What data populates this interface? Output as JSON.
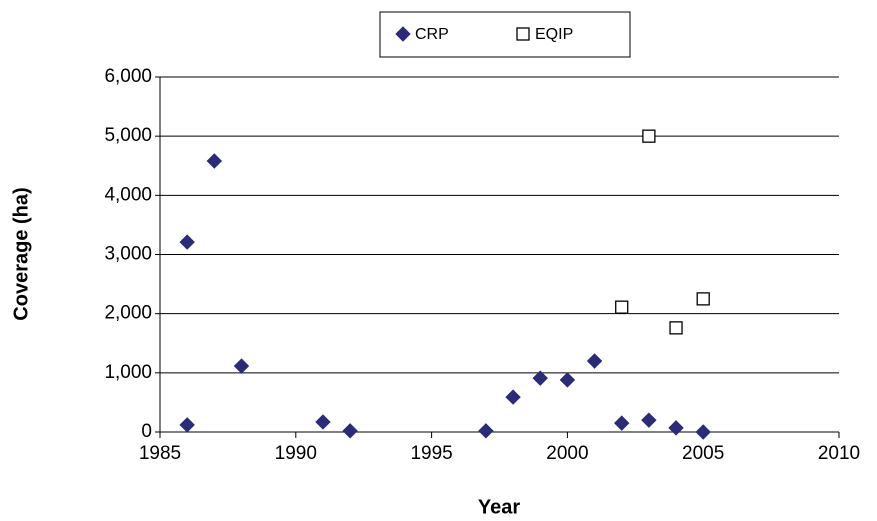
{
  "chart_data": {
    "type": "scatter",
    "x_label": "Year",
    "y_label": "Coverage (ha)",
    "series": [
      {
        "name": "CRP",
        "color": "#2b2b78",
        "marker": "diamond",
        "x": [
          1986,
          1986,
          1987,
          1988,
          1991,
          1992,
          1997,
          1998,
          1999,
          2000,
          2001,
          2002,
          2003,
          2004,
          2005
        ],
        "values": [
          3210,
          120,
          4580,
          1115,
          170,
          20,
          20,
          590,
          910,
          880,
          1200,
          150,
          200,
          70,
          0
        ]
      },
      {
        "name": "EQIP",
        "color": "#ffffff",
        "marker": "square",
        "x": [
          2002,
          2003,
          2004,
          2005
        ],
        "values": [
          2110,
          5000,
          1760,
          2250
        ]
      }
    ],
    "xlim": [
      1985,
      2010
    ],
    "xticks": [
      1985,
      1990,
      1995,
      2000,
      2005,
      2010
    ],
    "ylim": [
      0,
      6000
    ],
    "yticks": [
      0,
      {
        "value": 1000,
        "label": "1,000"
      },
      {
        "value": 2000,
        "label": "2,000"
      },
      {
        "value": 3000,
        "label": "3,000"
      },
      {
        "value": 4000,
        "label": "4,000"
      },
      {
        "value": 5000,
        "label": "5,000"
      },
      {
        "value": 6000,
        "label": "6,000"
      }
    ],
    "grid": true
  }
}
